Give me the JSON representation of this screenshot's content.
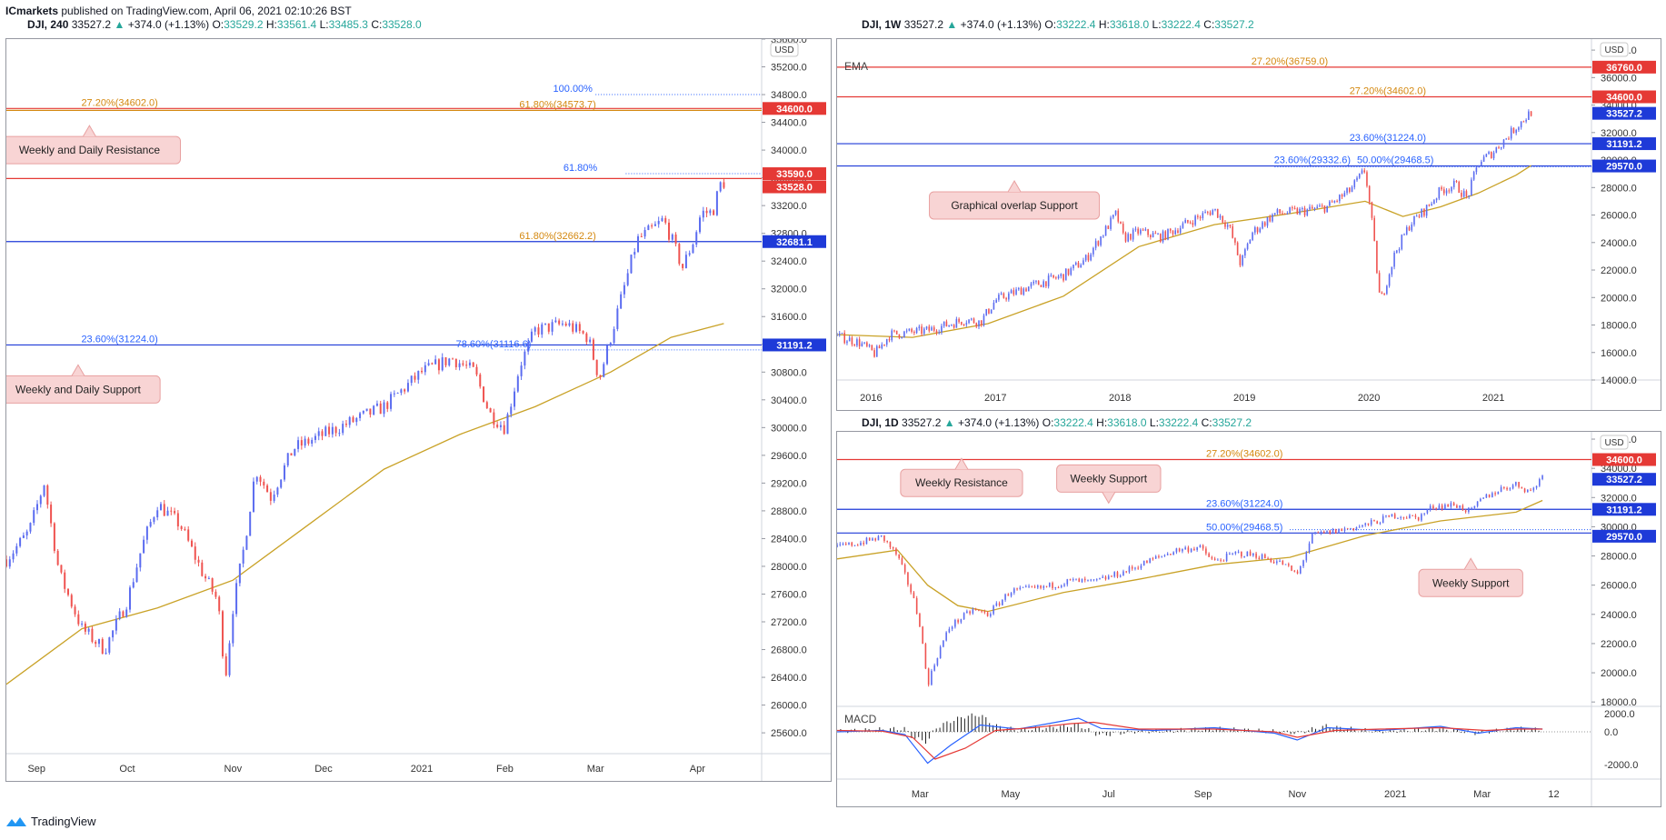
{
  "header": {
    "author": "ICmarkets",
    "published": "published on TradingView.com, April 06, 2021 02:10:26 BST"
  },
  "footer": {
    "brand": "TradingView",
    "logo_icon": "tradingview-logo-icon"
  },
  "colors": {
    "up": "#5b6cf0",
    "down": "#ef5350",
    "ema": "#c9a227",
    "resistance": "#e53935",
    "support": "#1e3ad8",
    "fib": "#d4880f",
    "fibblue": "#2962ff",
    "annotation_bg": "#f8d4d4",
    "annotation_border": "#e8a0a0"
  },
  "chart_data": [
    {
      "id": "dji-240",
      "type": "candlestick",
      "title": {
        "sym": "DJI, 240",
        "last": "33527.2",
        "chg": "+374.0 (+1.13%)",
        "o": "33529.2",
        "h": "33561.4",
        "l": "33485.3",
        "c": "33528.0"
      },
      "currency": "USD",
      "ylim": [
        25300,
        35600
      ],
      "yticks": [
        "25600.0",
        "26000.0",
        "26400.0",
        "26800.0",
        "27200.0",
        "27600.0",
        "28000.0",
        "28400.0",
        "28800.0",
        "29200.0",
        "29600.0",
        "30000.0",
        "30400.0",
        "30800.0",
        "31200.0",
        "31600.0",
        "32000.0",
        "32400.0",
        "32800.0",
        "33200.0",
        "33600.0",
        "34000.0",
        "34400.0",
        "34800.0",
        "35200.0",
        "35600.0"
      ],
      "xlabels": [
        {
          "t": "Sep",
          "f": 0.04
        },
        {
          "t": "Oct",
          "f": 0.16
        },
        {
          "t": "Nov",
          "f": 0.3
        },
        {
          "t": "Dec",
          "f": 0.42
        },
        {
          "t": "2021",
          "f": 0.55
        },
        {
          "t": "Feb",
          "f": 0.66
        },
        {
          "t": "Mar",
          "f": 0.78
        },
        {
          "t": "Apr",
          "f": 0.915
        }
      ],
      "series_path": [
        [
          0,
          28100
        ],
        [
          0.03,
          28500
        ],
        [
          0.05,
          29200
        ],
        [
          0.07,
          27900
        ],
        [
          0.1,
          27100
        ],
        [
          0.13,
          26800
        ],
        [
          0.16,
          27500
        ],
        [
          0.18,
          28300
        ],
        [
          0.2,
          28900
        ],
        [
          0.23,
          28600
        ],
        [
          0.26,
          27900
        ],
        [
          0.28,
          27500
        ],
        [
          0.29,
          26400
        ],
        [
          0.3,
          27400
        ],
        [
          0.315,
          28300
        ],
        [
          0.33,
          29400
        ],
        [
          0.35,
          29000
        ],
        [
          0.38,
          29700
        ],
        [
          0.42,
          29900
        ],
        [
          0.46,
          30100
        ],
        [
          0.5,
          30300
        ],
        [
          0.55,
          30800
        ],
        [
          0.59,
          31000
        ],
        [
          0.62,
          30800
        ],
        [
          0.64,
          30200
        ],
        [
          0.66,
          30000
        ],
        [
          0.68,
          30900
        ],
        [
          0.7,
          31400
        ],
        [
          0.74,
          31500
        ],
        [
          0.77,
          31300
        ],
        [
          0.785,
          30700
        ],
        [
          0.8,
          31300
        ],
        [
          0.82,
          32100
        ],
        [
          0.835,
          32700
        ],
        [
          0.86,
          32900
        ],
        [
          0.87,
          33000
        ],
        [
          0.885,
          32600
        ],
        [
          0.895,
          32300
        ],
        [
          0.91,
          32700
        ],
        [
          0.92,
          33100
        ],
        [
          0.935,
          33100
        ],
        [
          0.945,
          33500
        ],
        [
          0.95,
          33530
        ]
      ],
      "ema_path": [
        [
          0,
          26300
        ],
        [
          0.1,
          27100
        ],
        [
          0.2,
          27400
        ],
        [
          0.3,
          27800
        ],
        [
          0.4,
          28600
        ],
        [
          0.5,
          29400
        ],
        [
          0.6,
          29900
        ],
        [
          0.7,
          30300
        ],
        [
          0.8,
          30800
        ],
        [
          0.88,
          31300
        ],
        [
          0.95,
          31500
        ]
      ],
      "price_labels": [
        {
          "text": "34600.0",
          "v": 34600,
          "bg": "#e53935"
        },
        {
          "text": "33590.0",
          "v": 33660,
          "bg": "#e53935"
        },
        {
          "text": "33528.0",
          "v": 33470,
          "bg": "#e53935"
        },
        {
          "text": "32681.1",
          "v": 32681,
          "bg": "#1e3ad8"
        },
        {
          "text": "31191.2",
          "v": 31191,
          "bg": "#1e3ad8"
        }
      ],
      "hlines": [
        {
          "v": 34600,
          "color": "#e53935"
        },
        {
          "v": 34573,
          "color": "#d4880f"
        },
        {
          "v": 33590,
          "color": "#e53935"
        },
        {
          "v": 32681,
          "color": "#1e3ad8"
        },
        {
          "v": 31191,
          "color": "#1e3ad8"
        }
      ],
      "dotted": [
        {
          "v": 34800,
          "x0": 0.78,
          "color": "#2962ff"
        },
        {
          "v": 33660,
          "x0": 0.82,
          "color": "#2962ff"
        },
        {
          "v": 31120,
          "x0": 0.66,
          "color": "#2962ff"
        }
      ],
      "fib_labels": [
        {
          "text": "27.20%(34602.0)",
          "v": 34600,
          "f": 0.15,
          "color": "#d4880f"
        },
        {
          "text": "100.00%",
          "v": 34800,
          "f": 0.75,
          "color": "#2962ff"
        },
        {
          "text": "61.80%(34573.7)",
          "v": 34573,
          "f": 0.73,
          "color": "#d4880f"
        },
        {
          "text": "61.80%",
          "v": 33660,
          "f": 0.76,
          "color": "#2962ff"
        },
        {
          "text": "61.80%(32662.2)",
          "v": 32681,
          "f": 0.73,
          "color": "#d4880f"
        },
        {
          "text": "23.60%(31224.0)",
          "v": 31191,
          "f": 0.15,
          "color": "#2962ff"
        },
        {
          "text": "78.60%(31116.6)",
          "v": 31120,
          "f": 0.645,
          "color": "#2962ff"
        }
      ],
      "annotations": [
        {
          "text": "Weekly and Daily Resistance",
          "v": 34000,
          "f": 0.11,
          "tail": "up"
        },
        {
          "text": "Weekly and Daily Support",
          "v": 30550,
          "f": 0.095,
          "tail": "up"
        }
      ]
    },
    {
      "id": "dji-1w",
      "type": "candlestick",
      "title": {
        "sym": "DJI, 1W",
        "last": "33527.2",
        "chg": "+374.0 (+1.13%)",
        "o": "33222.4",
        "h": "33618.0",
        "l": "33222.4",
        "c": "33527.2"
      },
      "currency": "USD",
      "indicator": "EMA",
      "ylim": [
        14000,
        38800
      ],
      "yticks": [
        "14000.0",
        "16000.0",
        "18000.0",
        "20000.0",
        "22000.0",
        "24000.0",
        "26000.0",
        "28000.0",
        "30000.0",
        "32000.0",
        "34000.0",
        "36000.0",
        "38000.0"
      ],
      "xlabels": [
        {
          "t": "2016",
          "f": 0.045
        },
        {
          "t": "2017",
          "f": 0.21
        },
        {
          "t": "2018",
          "f": 0.375
        },
        {
          "t": "2019",
          "f": 0.54
        },
        {
          "t": "2020",
          "f": 0.705
        },
        {
          "t": "2021",
          "f": 0.87
        }
      ],
      "series_path": [
        [
          0,
          17200
        ],
        [
          0.03,
          16700
        ],
        [
          0.05,
          15900
        ],
        [
          0.07,
          17300
        ],
        [
          0.12,
          17600
        ],
        [
          0.17,
          18400
        ],
        [
          0.19,
          18200
        ],
        [
          0.21,
          19800
        ],
        [
          0.25,
          20700
        ],
        [
          0.3,
          21600
        ],
        [
          0.33,
          22800
        ],
        [
          0.37,
          26100
        ],
        [
          0.38,
          24300
        ],
        [
          0.4,
          24800
        ],
        [
          0.43,
          24400
        ],
        [
          0.47,
          25600
        ],
        [
          0.5,
          26400
        ],
        [
          0.52,
          25100
        ],
        [
          0.535,
          22400
        ],
        [
          0.55,
          24700
        ],
        [
          0.58,
          26100
        ],
        [
          0.62,
          26300
        ],
        [
          0.65,
          26600
        ],
        [
          0.68,
          27800
        ],
        [
          0.7,
          29300
        ],
        [
          0.71,
          25000
        ],
        [
          0.72,
          19600
        ],
        [
          0.74,
          23300
        ],
        [
          0.76,
          25400
        ],
        [
          0.78,
          26400
        ],
        [
          0.8,
          27800
        ],
        [
          0.82,
          28200
        ],
        [
          0.835,
          27200
        ],
        [
          0.85,
          29800
        ],
        [
          0.87,
          30600
        ],
        [
          0.89,
          31800
        ],
        [
          0.9,
          32400
        ],
        [
          0.92,
          33500
        ]
      ],
      "ema_path": [
        [
          0,
          17300
        ],
        [
          0.1,
          17100
        ],
        [
          0.2,
          18100
        ],
        [
          0.3,
          20100
        ],
        [
          0.4,
          23700
        ],
        [
          0.5,
          25300
        ],
        [
          0.6,
          26100
        ],
        [
          0.7,
          27000
        ],
        [
          0.75,
          25900
        ],
        [
          0.8,
          26600
        ],
        [
          0.85,
          27600
        ],
        [
          0.9,
          28900
        ],
        [
          0.92,
          29600
        ]
      ],
      "price_labels": [
        {
          "text": "36760.0",
          "v": 36760,
          "bg": "#e53935"
        },
        {
          "text": "34600.0",
          "v": 34600,
          "bg": "#e53935"
        },
        {
          "text": "33527.2",
          "v": 33400,
          "bg": "#1e3ad8"
        },
        {
          "text": "31191.2",
          "v": 31191,
          "bg": "#1e3ad8"
        },
        {
          "text": "29570.0",
          "v": 29570,
          "bg": "#1e3ad8"
        }
      ],
      "hlines": [
        {
          "v": 36760,
          "color": "#e53935"
        },
        {
          "v": 34600,
          "color": "#e53935"
        },
        {
          "v": 31191,
          "color": "#1e3ad8"
        },
        {
          "v": 29570,
          "color": "#1e3ad8"
        }
      ],
      "dotted": [
        {
          "v": 29500,
          "x0": 0.58,
          "color": "#2962ff"
        }
      ],
      "fib_labels": [
        {
          "text": "27.20%(36759.0)",
          "v": 36760,
          "f": 0.6,
          "color": "#d4880f"
        },
        {
          "text": "27.20%(34602.0)",
          "v": 34600,
          "f": 0.73,
          "color": "#d4880f"
        },
        {
          "text": "23.60%(31224.0)",
          "v": 31191,
          "f": 0.73,
          "color": "#2962ff"
        },
        {
          "text": "23.60%(29332.6)",
          "v": 29570,
          "f": 0.63,
          "color": "#2962ff"
        },
        {
          "text": "50.00%(29468.5)",
          "v": 29570,
          "f": 0.74,
          "color": "#2962ff"
        }
      ],
      "annotations": [
        {
          "text": "Graphical overlap Support",
          "v": 26700,
          "f": 0.235,
          "tail": "up"
        }
      ]
    },
    {
      "id": "dji-1d",
      "type": "candlestick",
      "title": {
        "sym": "DJI, 1D",
        "last": "33527.2",
        "chg": "+374.0 (+1.13%)",
        "o": "33222.4",
        "h": "33618.0",
        "l": "33222.4",
        "c": "33527.2"
      },
      "currency": "USD",
      "ylim": [
        17700,
        36500
      ],
      "yticks": [
        "18000.0",
        "20000.0",
        "22000.0",
        "24000.0",
        "26000.0",
        "28000.0",
        "30000.0",
        "32000.0",
        "34000.0",
        "36000.0"
      ],
      "xlabels": [
        {
          "t": "Mar",
          "f": 0.11
        },
        {
          "t": "May",
          "f": 0.23
        },
        {
          "t": "Jul",
          "f": 0.36
        },
        {
          "t": "Sep",
          "f": 0.485
        },
        {
          "t": "Nov",
          "f": 0.61
        },
        {
          "t": "2021",
          "f": 0.74
        },
        {
          "t": "Mar",
          "f": 0.855
        },
        {
          "t": "12",
          "f": 0.95
        }
      ],
      "series_path": [
        [
          0,
          28600
        ],
        [
          0.03,
          28900
        ],
        [
          0.06,
          29300
        ],
        [
          0.08,
          28000
        ],
        [
          0.1,
          25300
        ],
        [
          0.11,
          23300
        ],
        [
          0.12,
          19200
        ],
        [
          0.135,
          21500
        ],
        [
          0.15,
          23200
        ],
        [
          0.18,
          24300
        ],
        [
          0.2,
          24000
        ],
        [
          0.23,
          25600
        ],
        [
          0.27,
          25800
        ],
        [
          0.31,
          26300
        ],
        [
          0.34,
          26200
        ],
        [
          0.38,
          26900
        ],
        [
          0.42,
          27800
        ],
        [
          0.45,
          28400
        ],
        [
          0.48,
          28600
        ],
        [
          0.5,
          27600
        ],
        [
          0.53,
          28200
        ],
        [
          0.56,
          28000
        ],
        [
          0.59,
          27500
        ],
        [
          0.61,
          26700
        ],
        [
          0.63,
          29400
        ],
        [
          0.66,
          29700
        ],
        [
          0.7,
          30100
        ],
        [
          0.74,
          30800
        ],
        [
          0.77,
          30600
        ],
        [
          0.79,
          31400
        ],
        [
          0.82,
          31500
        ],
        [
          0.84,
          31000
        ],
        [
          0.855,
          31900
        ],
        [
          0.88,
          32600
        ],
        [
          0.9,
          32900
        ],
        [
          0.92,
          32400
        ],
        [
          0.935,
          33500
        ]
      ],
      "ema_path": [
        [
          0,
          27800
        ],
        [
          0.08,
          28400
        ],
        [
          0.12,
          26000
        ],
        [
          0.16,
          24600
        ],
        [
          0.2,
          24200
        ],
        [
          0.3,
          25500
        ],
        [
          0.4,
          26400
        ],
        [
          0.5,
          27400
        ],
        [
          0.6,
          27900
        ],
        [
          0.7,
          29400
        ],
        [
          0.8,
          30400
        ],
        [
          0.9,
          31000
        ],
        [
          0.935,
          31800
        ]
      ],
      "price_labels": [
        {
          "text": "34600.0",
          "v": 34600,
          "bg": "#e53935"
        },
        {
          "text": "33527.2",
          "v": 33250,
          "bg": "#1e3ad8"
        },
        {
          "text": "31191.2",
          "v": 31191,
          "bg": "#1e3ad8"
        },
        {
          "text": "29570.0",
          "v": 29350,
          "bg": "#1e3ad8"
        }
      ],
      "hlines": [
        {
          "v": 34600,
          "color": "#e53935"
        },
        {
          "v": 31191,
          "color": "#1e3ad8"
        },
        {
          "v": 29570,
          "color": "#1e3ad8"
        }
      ],
      "dotted": [
        {
          "v": 29800,
          "x0": 0.6,
          "color": "#2962ff"
        }
      ],
      "fib_labels": [
        {
          "text": "27.20%(34602.0)",
          "v": 34600,
          "f": 0.54,
          "color": "#d4880f"
        },
        {
          "text": "23.60%(31224.0)",
          "v": 31191,
          "f": 0.54,
          "color": "#2962ff"
        },
        {
          "text": "50.00%(29468.5)",
          "v": 29570,
          "f": 0.54,
          "color": "#2962ff"
        }
      ],
      "annotations": [
        {
          "text": "Weekly Resistance",
          "v": 33000,
          "f": 0.165,
          "tail": "up"
        },
        {
          "text": "Weekly Support",
          "v": 33300,
          "f": 0.36,
          "tail": "down"
        },
        {
          "text": "Weekly Support",
          "v": 26150,
          "f": 0.84,
          "tail": "up"
        }
      ],
      "macd": {
        "label": "MACD",
        "yticks": [
          "2000.0",
          "0.0",
          "-2000.0"
        ]
      }
    }
  ]
}
